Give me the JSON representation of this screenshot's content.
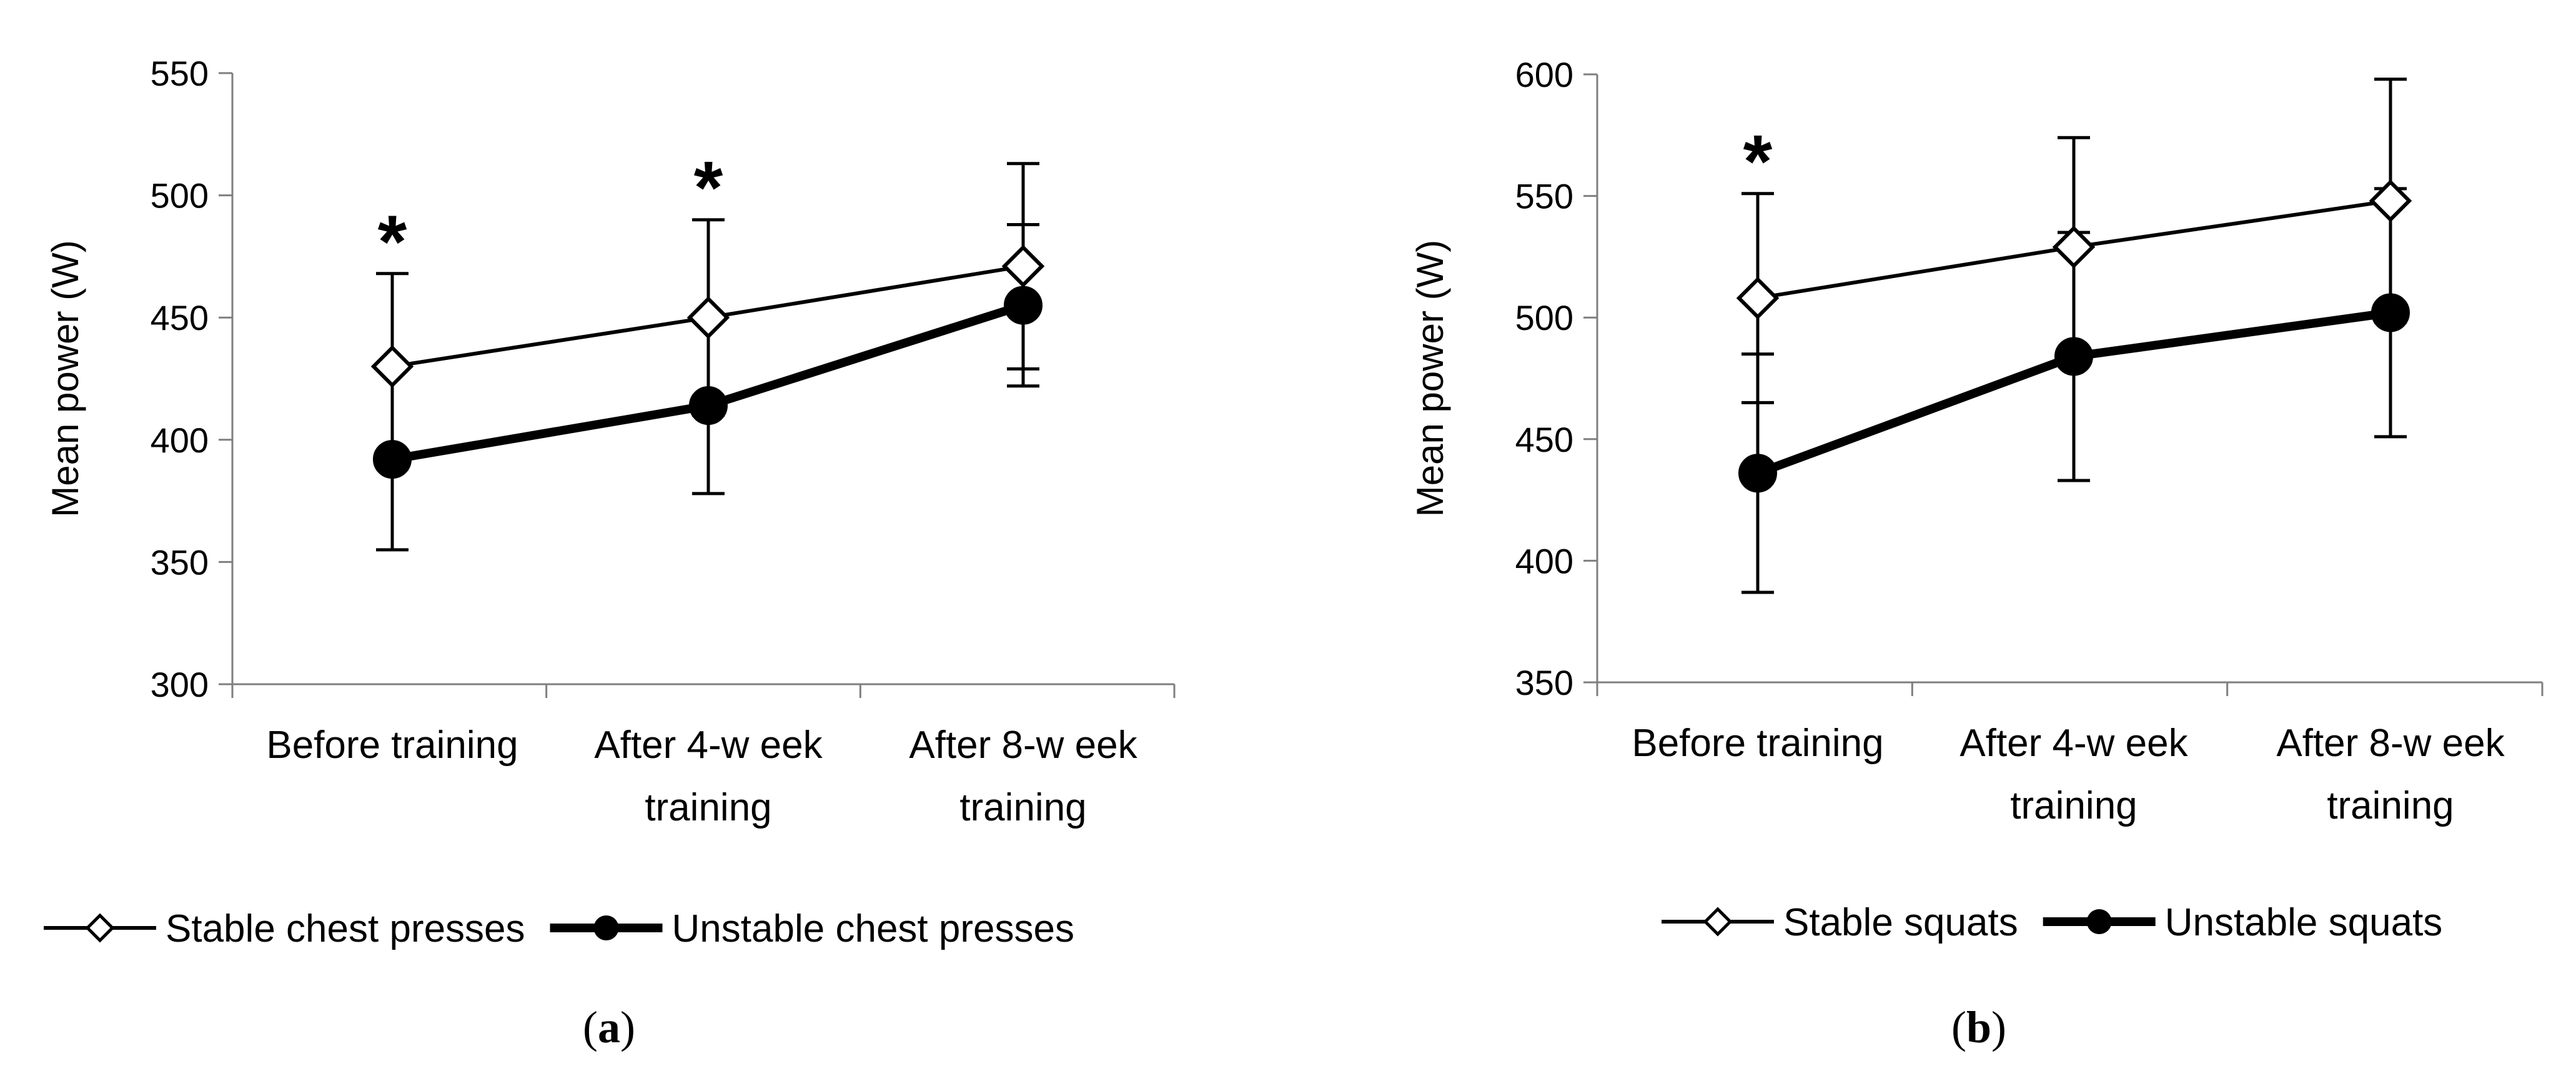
{
  "chart_data": [
    {
      "type": "line",
      "panel_label": "a",
      "panel_label_open": "(",
      "panel_label_close": ")",
      "ylabel": "Mean power (W)",
      "xlabel": "",
      "ylim": [
        300,
        550
      ],
      "yticks": [
        300,
        350,
        400,
        450,
        500,
        550
      ],
      "categories": [
        [
          "Before training"
        ],
        [
          "After 4-w eek",
          "training"
        ],
        [
          "After 8-w eek",
          "training"
        ]
      ],
      "series": [
        {
          "name": "Stable chest presses",
          "marker": "diamond",
          "values": [
            430,
            450,
            471
          ],
          "error_bars": [
            38,
            40,
            42
          ]
        },
        {
          "name": "Unstable chest presses",
          "marker": "circle",
          "values": [
            392,
            414,
            455
          ],
          "error_bars": [
            37,
            36,
            33
          ]
        }
      ],
      "annotations": [
        {
          "text": "*",
          "category_index": 0
        },
        {
          "text": "*",
          "category_index": 1
        }
      ],
      "legend_position": "bottom"
    },
    {
      "type": "line",
      "panel_label": "b",
      "panel_label_open": "(",
      "panel_label_close": ")",
      "ylabel": "Mean power (W)",
      "xlabel": "",
      "ylim": [
        350,
        600
      ],
      "yticks": [
        350,
        400,
        450,
        500,
        550,
        600
      ],
      "categories": [
        [
          "Before training"
        ],
        [
          "After 4-w eek",
          "training"
        ],
        [
          "After 8-w eek",
          "training"
        ]
      ],
      "series": [
        {
          "name": "Stable squats",
          "marker": "diamond",
          "values": [
            508,
            529,
            548
          ],
          "error_bars": [
            43,
            45,
            50
          ]
        },
        {
          "name": "Unstable squats",
          "marker": "circle",
          "values": [
            436,
            484,
            502
          ],
          "error_bars": [
            49,
            51,
            51
          ]
        }
      ],
      "annotations": [
        {
          "text": "*",
          "category_index": 0
        }
      ],
      "legend_position": "bottom"
    }
  ]
}
